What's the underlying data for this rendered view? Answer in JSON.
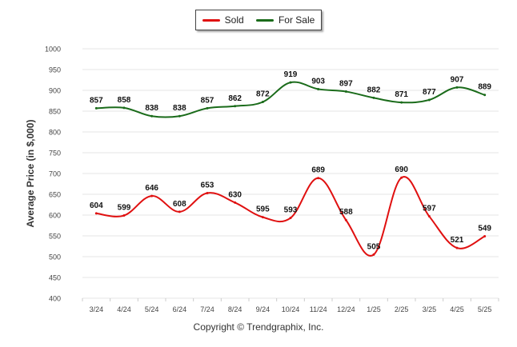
{
  "legend": {
    "sold_label": "Sold",
    "for_sale_label": "For Sale"
  },
  "copyright": "Copyright © Trendgraphix, Inc.",
  "colors": {
    "sold": "#e01010",
    "for_sale": "#1a6b1a",
    "grid": "#e6e6e6",
    "axis_text": "#444444"
  },
  "chart_data": {
    "type": "line",
    "title": "",
    "xlabel": "",
    "ylabel": "Average Price (in $,000)",
    "categories": [
      "3/24",
      "4/24",
      "5/24",
      "6/24",
      "7/24",
      "8/24",
      "9/24",
      "10/24",
      "11/24",
      "12/24",
      "1/25",
      "2/25",
      "3/25",
      "4/25",
      "5/25"
    ],
    "ylim": [
      400,
      1000
    ],
    "yticks": [
      400,
      450,
      500,
      550,
      600,
      650,
      700,
      750,
      800,
      850,
      900,
      950,
      1000
    ],
    "grid": true,
    "legend_position": "top-center",
    "series": [
      {
        "name": "Sold",
        "color": "#e01010",
        "values": [
          604,
          599,
          646,
          608,
          653,
          630,
          595,
          593,
          689,
          588,
          505,
          690,
          597,
          521,
          549
        ]
      },
      {
        "name": "For Sale",
        "color": "#1a6b1a",
        "values": [
          857,
          858,
          838,
          838,
          857,
          862,
          872,
          919,
          903,
          897,
          882,
          871,
          877,
          907,
          889
        ]
      }
    ]
  }
}
